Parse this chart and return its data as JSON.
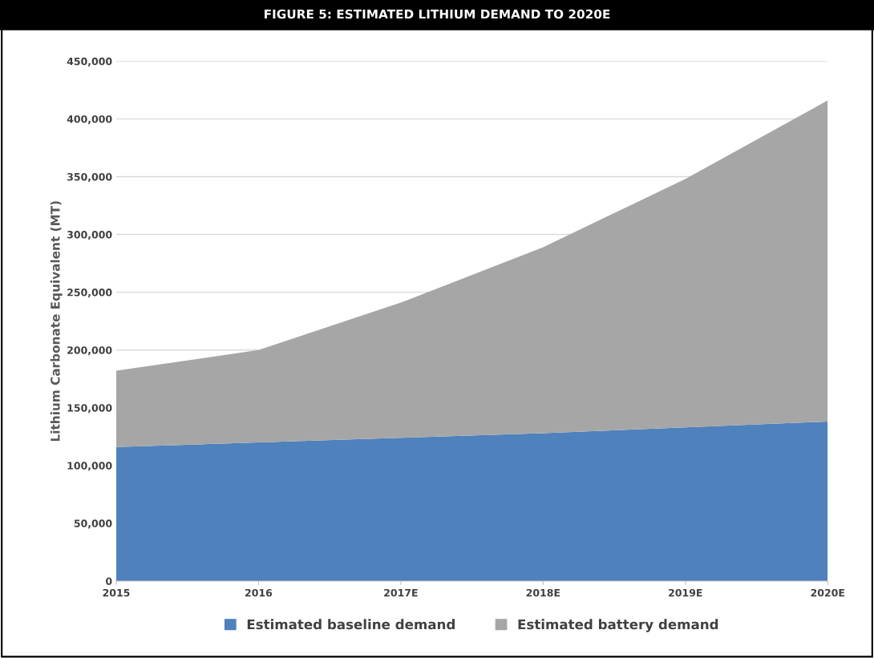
{
  "chart_data": {
    "type": "area",
    "title": "FIGURE 5: ESTIMATED LITHIUM DEMAND TO 2020E",
    "ylabel": "Lithium Carbonate Equivalent (MT)",
    "categories": [
      "2015",
      "2016",
      "2017E",
      "2018E",
      "2019E",
      "2020E"
    ],
    "stacked": true,
    "series": [
      {
        "name": "Estimated baseline demand",
        "color": "#4f81bd",
        "values": [
          116000,
          120000,
          124000,
          128000,
          133000,
          138000
        ]
      },
      {
        "name": "Estimated battery demand",
        "color": "#a6a6a6",
        "values": [
          66000,
          80000,
          117000,
          161000,
          215000,
          278000
        ]
      }
    ],
    "ylim": [
      0,
      450000
    ],
    "yticks": [
      {
        "value": 0,
        "label": "0"
      },
      {
        "value": 50000,
        "label": "50,000"
      },
      {
        "value": 100000,
        "label": "100,000"
      },
      {
        "value": 150000,
        "label": "150,000"
      },
      {
        "value": 200000,
        "label": "200,000"
      },
      {
        "value": 250000,
        "label": "250,000"
      },
      {
        "value": 300000,
        "label": "300,000"
      },
      {
        "value": 350000,
        "label": "350,000"
      },
      {
        "value": 400000,
        "label": "400,000"
      },
      {
        "value": 450000,
        "label": "450,000"
      }
    ],
    "grid": "y",
    "legend": "bottom"
  }
}
